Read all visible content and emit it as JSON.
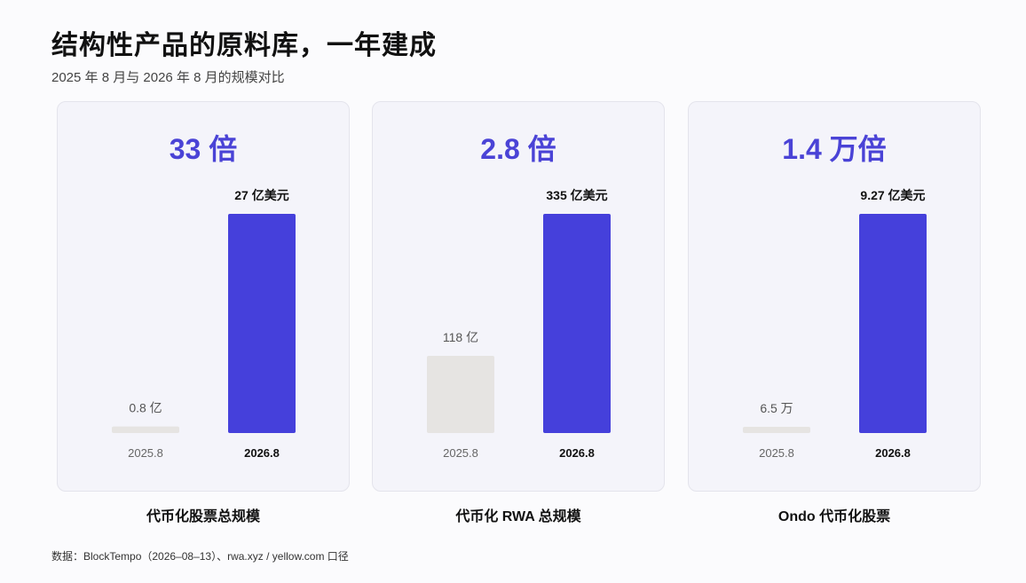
{
  "title": "结构性产品的原料库，一年建成",
  "subtitle": "2025 年 8 月与 2026 年 8 月的规模对比",
  "source": "数据：BlockTempo（2026–08–13）、rwa.xyz / yellow.com 口径",
  "colors": {
    "accent": "#4540db",
    "bar_before": "#e6e4e2",
    "panel_bg": "#f4f4fa"
  },
  "chart_data": [
    {
      "type": "bar",
      "multiplier": "33 倍",
      "caption": "代币化股票总规模",
      "categories": [
        "2025.8",
        "2026.8"
      ],
      "values": [
        0.8,
        27
      ],
      "unit": "亿美元",
      "data_labels": [
        "0.8 亿",
        "27 亿美元"
      ],
      "ylim": [
        0,
        27
      ]
    },
    {
      "type": "bar",
      "multiplier": "2.8 倍",
      "caption": "代币化 RWA 总规模",
      "categories": [
        "2025.8",
        "2026.8"
      ],
      "values": [
        118,
        335
      ],
      "unit": "亿美元",
      "data_labels": [
        "118 亿",
        "335 亿美元"
      ],
      "ylim": [
        0,
        335
      ]
    },
    {
      "type": "bar",
      "multiplier": "1.4 万倍",
      "caption": "Ondo 代币化股票",
      "categories": [
        "2025.8",
        "2026.8"
      ],
      "values": [
        6.5,
        92700
      ],
      "unit": "万美元",
      "data_labels": [
        "6.5 万",
        "9.27 亿美元"
      ],
      "ylim": [
        0,
        92700
      ]
    }
  ]
}
